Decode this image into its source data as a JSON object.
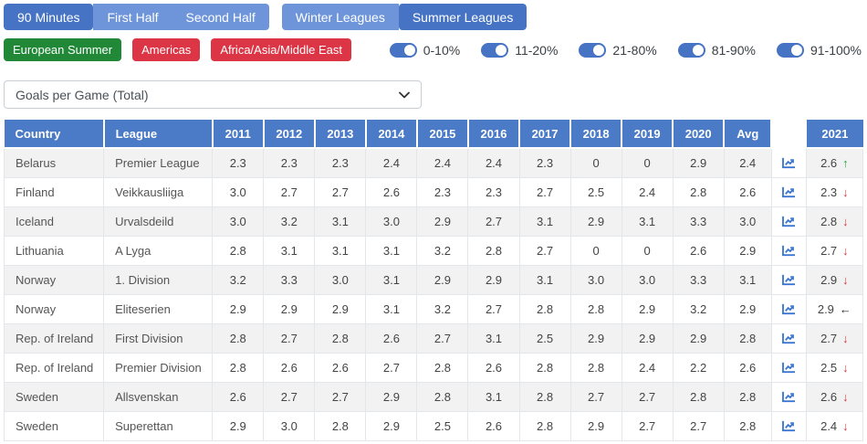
{
  "toolbar": {
    "time_filters": [
      {
        "label": "90 Minutes",
        "active": true
      },
      {
        "label": "First Half",
        "active": false
      },
      {
        "label": "Second Half",
        "active": false
      }
    ],
    "season_filters": [
      {
        "label": "Winter Leagues",
        "active": false
      },
      {
        "label": "Summer Leagues",
        "active": true
      }
    ],
    "region_filters": [
      {
        "label": "European Summer",
        "style": "green"
      },
      {
        "label": "Americas",
        "style": "red"
      },
      {
        "label": "Africa/Asia/Middle East",
        "style": "red"
      }
    ],
    "percent_toggles": [
      {
        "label": "0-10%",
        "on": true
      },
      {
        "label": "11-20%",
        "on": true
      },
      {
        "label": "21-80%",
        "on": true
      },
      {
        "label": "81-90%",
        "on": true
      },
      {
        "label": "91-100%",
        "on": true
      }
    ]
  },
  "stat_select": {
    "value": "Goals per Game (Total)"
  },
  "table": {
    "columns": {
      "country": "Country",
      "league": "League",
      "years": [
        "2011",
        "2012",
        "2013",
        "2014",
        "2015",
        "2016",
        "2017",
        "2018",
        "2019",
        "2020"
      ],
      "avg": "Avg",
      "chart": "",
      "current": "2021"
    },
    "rows": [
      {
        "country": "Belarus",
        "league": "Premier League",
        "values": [
          "2.3",
          "2.3",
          "2.3",
          "2.4",
          "2.4",
          "2.4",
          "2.3",
          "0",
          "0",
          "2.9"
        ],
        "avg": "2.4",
        "current": "2.6",
        "trend": "up"
      },
      {
        "country": "Finland",
        "league": "Veikkausliiga",
        "values": [
          "3.0",
          "2.7",
          "2.7",
          "2.6",
          "2.3",
          "2.3",
          "2.7",
          "2.5",
          "2.4",
          "2.8"
        ],
        "avg": "2.6",
        "current": "2.3",
        "trend": "down"
      },
      {
        "country": "Iceland",
        "league": "Urvalsdeild",
        "values": [
          "3.0",
          "3.2",
          "3.1",
          "3.0",
          "2.9",
          "2.7",
          "3.1",
          "2.9",
          "3.1",
          "3.3"
        ],
        "avg": "3.0",
        "current": "2.8",
        "trend": "down"
      },
      {
        "country": "Lithuania",
        "league": "A Lyga",
        "values": [
          "2.8",
          "3.1",
          "3.1",
          "3.1",
          "3.2",
          "2.8",
          "2.7",
          "0",
          "0",
          "2.6"
        ],
        "avg": "2.9",
        "current": "2.7",
        "trend": "down"
      },
      {
        "country": "Norway",
        "league": "1. Division",
        "values": [
          "3.2",
          "3.3",
          "3.0",
          "3.1",
          "2.9",
          "2.9",
          "3.1",
          "3.0",
          "3.0",
          "3.3"
        ],
        "avg": "3.1",
        "current": "2.9",
        "trend": "down"
      },
      {
        "country": "Norway",
        "league": "Eliteserien",
        "values": [
          "2.9",
          "2.9",
          "2.9",
          "3.1",
          "3.2",
          "2.7",
          "2.8",
          "2.8",
          "2.9",
          "3.2"
        ],
        "avg": "2.9",
        "current": "2.9",
        "trend": "flat"
      },
      {
        "country": "Rep. of Ireland",
        "league": "First Division",
        "values": [
          "2.8",
          "2.7",
          "2.8",
          "2.6",
          "2.7",
          "3.1",
          "2.5",
          "2.9",
          "2.9",
          "2.9"
        ],
        "avg": "2.8",
        "current": "2.7",
        "trend": "down"
      },
      {
        "country": "Rep. of Ireland",
        "league": "Premier Division",
        "values": [
          "2.8",
          "2.6",
          "2.6",
          "2.7",
          "2.8",
          "2.6",
          "2.8",
          "2.8",
          "2.4",
          "2.2"
        ],
        "avg": "2.6",
        "current": "2.5",
        "trend": "down"
      },
      {
        "country": "Sweden",
        "league": "Allsvenskan",
        "values": [
          "2.6",
          "2.7",
          "2.7",
          "2.9",
          "2.8",
          "3.1",
          "2.8",
          "2.7",
          "2.7",
          "2.8"
        ],
        "avg": "2.8",
        "current": "2.6",
        "trend": "down"
      },
      {
        "country": "Sweden",
        "league": "Superettan",
        "values": [
          "2.9",
          "3.0",
          "2.8",
          "2.9",
          "2.5",
          "2.6",
          "2.8",
          "2.9",
          "2.7",
          "2.7"
        ],
        "avg": "2.8",
        "current": "2.4",
        "trend": "down"
      }
    ]
  },
  "trend_glyphs": {
    "up": "↑",
    "down": "↓",
    "flat": "←"
  },
  "icons": {
    "chart": "line-chart-icon",
    "select_chevron": "chevron-down-icon",
    "switch": "switch-icon"
  },
  "colors": {
    "primary_blue": "#4673c4",
    "light_blue": "#6e95da",
    "header_blue": "#4b7ac6",
    "green": "#218838",
    "red": "#dc3545",
    "trend_up": "#28a745",
    "trend_down": "#d63c3c",
    "trend_flat": "#212529",
    "icon_blue": "#3b76d1"
  }
}
